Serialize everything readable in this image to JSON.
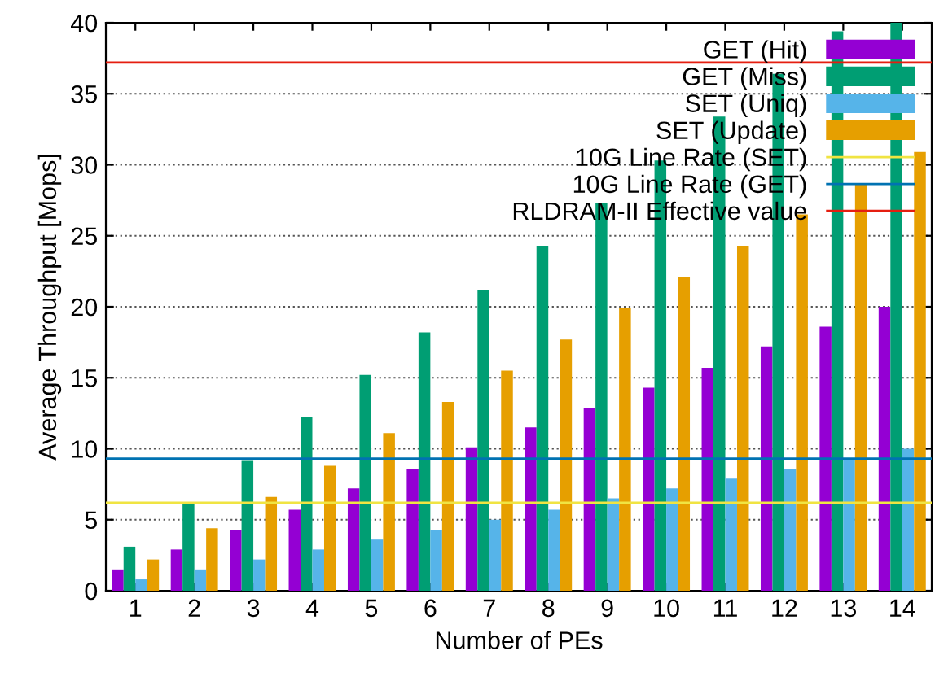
{
  "chart_data": {
    "type": "bar",
    "xlabel": "Number of PEs",
    "ylabel": "Average Throughput [Mops]",
    "categories": [
      "1",
      "2",
      "3",
      "4",
      "5",
      "6",
      "7",
      "8",
      "9",
      "10",
      "11",
      "12",
      "13",
      "14"
    ],
    "series": [
      {
        "name": "GET (Hit)",
        "color": "#9400d3",
        "values": [
          1.5,
          2.9,
          4.3,
          5.7,
          7.2,
          8.6,
          10.1,
          11.5,
          12.9,
          14.3,
          15.7,
          17.2,
          18.6,
          20.0
        ]
      },
      {
        "name": "GET (Miss)",
        "color": "#009e73",
        "values": [
          3.1,
          6.1,
          9.2,
          12.2,
          15.2,
          18.2,
          21.2,
          24.3,
          27.3,
          30.3,
          33.4,
          36.4,
          39.4,
          40
        ]
      },
      {
        "name": "SET (Uniq)",
        "color": "#56b4e9",
        "values": [
          0.8,
          1.5,
          2.2,
          2.9,
          3.6,
          4.3,
          5.0,
          5.7,
          6.5,
          7.2,
          7.9,
          8.6,
          9.3,
          10.0
        ]
      },
      {
        "name": "SET (Update)",
        "color": "#e69f00",
        "values": [
          2.2,
          4.4,
          6.6,
          8.8,
          11.1,
          13.3,
          15.5,
          17.7,
          19.9,
          22.1,
          24.3,
          26.5,
          28.7,
          30.9
        ]
      }
    ],
    "ref_lines": [
      {
        "axis": "y",
        "value": 6.2,
        "label": "10G Line Rate (SET)",
        "color": "#f0e442"
      },
      {
        "axis": "y",
        "value": 9.3,
        "label": "10G Line Rate (GET)",
        "color": "#0072b2"
      },
      {
        "axis": "y",
        "value": 37.2,
        "label": "RLDRAM-II Effective value",
        "color": "#e51e10"
      }
    ],
    "ylim": [
      0,
      40
    ],
    "yticks": [
      0,
      5,
      10,
      15,
      20,
      25,
      30,
      35,
      40
    ],
    "grid": "y",
    "legend": "top right"
  }
}
